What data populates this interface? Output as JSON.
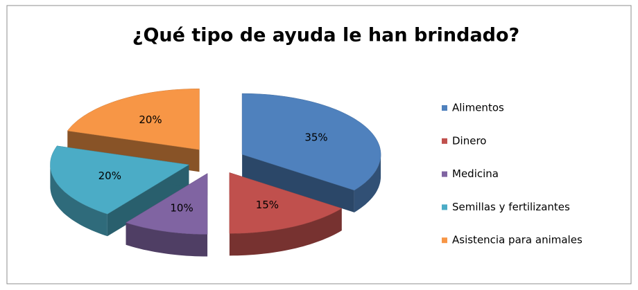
{
  "chart_data": {
    "type": "pie",
    "title": "¿Qué tipo de ayuda le han brindado?",
    "categories": [
      "Alimentos",
      "Dinero",
      "Medicina",
      "Semillas y fertilizantes",
      "Asistencia para animales"
    ],
    "values": [
      35,
      15,
      10,
      20,
      20
    ],
    "value_labels": [
      "35%",
      "15%",
      "10%",
      "20%",
      "20%"
    ],
    "colors": [
      "#4f81bd",
      "#c0504d",
      "#8064a2",
      "#4bacc6",
      "#f79646"
    ],
    "legend": "right"
  }
}
